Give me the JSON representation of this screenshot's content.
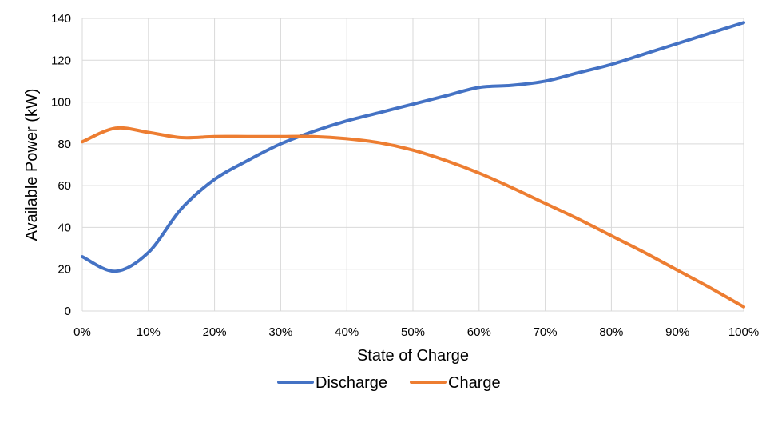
{
  "chart_data": {
    "type": "line",
    "title": "",
    "xlabel": "State of Charge",
    "ylabel": "Available Power (kW)",
    "x": [
      0,
      5,
      10,
      15,
      20,
      25,
      30,
      35,
      40,
      45,
      50,
      55,
      60,
      65,
      70,
      75,
      80,
      85,
      90,
      95,
      100
    ],
    "x_tick_labels": [
      "0%",
      "10%",
      "20%",
      "30%",
      "40%",
      "50%",
      "60%",
      "70%",
      "80%",
      "90%",
      "100%"
    ],
    "x_tick_values": [
      0,
      10,
      20,
      30,
      40,
      50,
      60,
      70,
      80,
      90,
      100
    ],
    "xlim": [
      0,
      100
    ],
    "y_tick_labels": [
      "0",
      "20",
      "40",
      "60",
      "80",
      "100",
      "120",
      "140"
    ],
    "y_tick_values": [
      0,
      20,
      40,
      60,
      80,
      100,
      120,
      140
    ],
    "ylim": [
      0,
      140
    ],
    "grid": true,
    "legend_position": "bottom",
    "series": [
      {
        "name": "Discharge",
        "color": "#4472C4",
        "values": [
          26,
          19,
          28,
          49,
          63,
          72,
          80,
          86,
          91,
          95,
          99,
          103,
          107,
          108,
          110,
          114,
          118,
          123,
          128,
          133,
          138
        ]
      },
      {
        "name": "Charge",
        "color": "#ED7D31",
        "values": [
          81,
          87.5,
          85.5,
          83,
          83.5,
          83.5,
          83.5,
          83.5,
          82.5,
          80.5,
          77,
          72,
          66,
          59,
          51.5,
          44,
          36,
          28,
          19.5,
          11,
          2
        ]
      }
    ]
  }
}
